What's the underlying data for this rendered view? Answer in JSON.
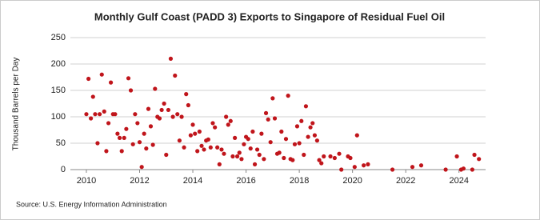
{
  "chart_data": {
    "type": "scatter",
    "title": "Monthly Gulf Coast (PADD 3) Exports to Singapore of Residual Fuel Oil",
    "y_label": "Thousand Barrels per Day",
    "source": "Source: U.S. Energy Information Administration",
    "color": "#c0151b",
    "xlim": [
      2009.4,
      2025.0
    ],
    "xticks": [
      2010,
      2012,
      2014,
      2016,
      2018,
      2020,
      2022,
      2024
    ],
    "ylim": [
      0,
      250
    ],
    "yticks": [
      0,
      50,
      100,
      150,
      200,
      250
    ],
    "grid": true,
    "x": [
      2010.0,
      2010.08,
      2010.17,
      2010.25,
      2010.33,
      2010.42,
      2010.5,
      2010.58,
      2010.67,
      2010.75,
      2010.83,
      2010.92,
      2011.0,
      2011.08,
      2011.17,
      2011.25,
      2011.33,
      2011.42,
      2011.5,
      2011.58,
      2011.67,
      2011.75,
      2011.83,
      2011.92,
      2012.0,
      2012.08,
      2012.17,
      2012.25,
      2012.33,
      2012.42,
      2012.5,
      2012.58,
      2012.67,
      2012.75,
      2012.83,
      2012.92,
      2013.0,
      2013.08,
      2013.17,
      2013.25,
      2013.33,
      2013.42,
      2013.5,
      2013.58,
      2013.67,
      2013.75,
      2013.83,
      2013.92,
      2014.0,
      2014.08,
      2014.17,
      2014.25,
      2014.33,
      2014.42,
      2014.5,
      2014.58,
      2014.67,
      2014.75,
      2014.83,
      2014.92,
      2015.0,
      2015.08,
      2015.17,
      2015.25,
      2015.33,
      2015.42,
      2015.5,
      2015.58,
      2015.67,
      2015.75,
      2015.83,
      2015.92,
      2016.0,
      2016.08,
      2016.17,
      2016.25,
      2016.33,
      2016.42,
      2016.5,
      2016.58,
      2016.67,
      2016.75,
      2016.83,
      2016.92,
      2017.0,
      2017.08,
      2017.17,
      2017.25,
      2017.33,
      2017.42,
      2017.5,
      2017.58,
      2017.67,
      2017.75,
      2017.83,
      2017.92,
      2018.0,
      2018.08,
      2018.17,
      2018.25,
      2018.33,
      2018.42,
      2018.5,
      2018.58,
      2018.67,
      2018.75,
      2018.83,
      2018.92,
      2019.17,
      2019.33,
      2019.5,
      2019.58,
      2019.83,
      2019.92,
      2020.08,
      2020.17,
      2020.42,
      2020.58,
      2021.5,
      2022.25,
      2022.58,
      2023.5,
      2023.92,
      2024.08,
      2024.17,
      2024.5,
      2024.58,
      2024.75
    ],
    "values": [
      105,
      172,
      97,
      138,
      105,
      50,
      105,
      180,
      110,
      35,
      88,
      165,
      105,
      105,
      68,
      60,
      35,
      60,
      77,
      173,
      150,
      48,
      105,
      88,
      52,
      5,
      68,
      40,
      115,
      82,
      47,
      153,
      100,
      97,
      113,
      125,
      28,
      113,
      210,
      100,
      178,
      105,
      55,
      100,
      42,
      143,
      122,
      65,
      85,
      68,
      35,
      72,
      45,
      38,
      55,
      57,
      42,
      88,
      80,
      42,
      10,
      38,
      30,
      100,
      85,
      92,
      25,
      60,
      25,
      32,
      20,
      48,
      62,
      58,
      40,
      72,
      10,
      38,
      28,
      68,
      20,
      107,
      95,
      52,
      135,
      97,
      30,
      32,
      72,
      22,
      58,
      140,
      20,
      18,
      48,
      82,
      50,
      92,
      28,
      120,
      62,
      80,
      88,
      65,
      55,
      18,
      12,
      25,
      25,
      22,
      30,
      0,
      25,
      22,
      5,
      65,
      8,
      10,
      0,
      5,
      8,
      0,
      25,
      0,
      2,
      0,
      28,
      20
    ]
  }
}
